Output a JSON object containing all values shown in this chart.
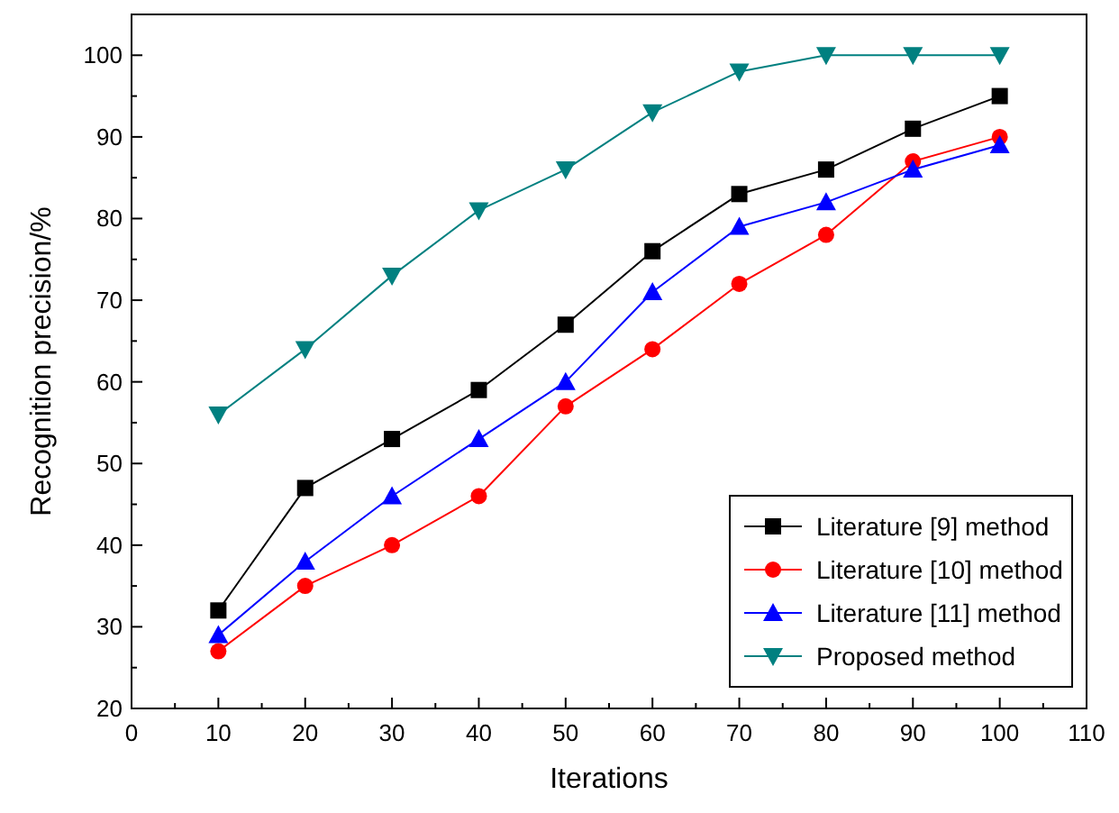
{
  "chart_data": {
    "type": "line",
    "xlabel": "Iterations",
    "ylabel": "Recognition precision/%",
    "x": [
      10,
      20,
      30,
      40,
      50,
      60,
      70,
      80,
      90,
      100
    ],
    "xlim": [
      0,
      110
    ],
    "xticks": [
      0,
      10,
      20,
      30,
      40,
      50,
      60,
      70,
      80,
      90,
      100,
      110
    ],
    "ylim": [
      20,
      105
    ],
    "yticks": [
      20,
      30,
      40,
      50,
      60,
      70,
      80,
      90,
      100
    ],
    "grid": false,
    "legend": "bottom right",
    "line_style": "solid",
    "series": [
      {
        "name": "Literature [9] method",
        "color": "#000000",
        "marker": "square",
        "values": [
          32,
          47,
          53,
          59,
          67,
          76,
          83,
          86,
          91,
          95
        ]
      },
      {
        "name": "Literature [10] method",
        "color": "#ff0000",
        "marker": "circle",
        "values": [
          27,
          35,
          40,
          46,
          57,
          64,
          72,
          78,
          87,
          90
        ]
      },
      {
        "name": "Literature [11] method",
        "color": "#0000ff",
        "marker": "triangle",
        "values": [
          29,
          38,
          46,
          53,
          60,
          71,
          79,
          82,
          86,
          89
        ]
      },
      {
        "name": "Proposed method",
        "color": "#008080",
        "marker": "triangle-down",
        "values": [
          56,
          64,
          73,
          81,
          86,
          93,
          98,
          100,
          100,
          100
        ]
      }
    ]
  }
}
